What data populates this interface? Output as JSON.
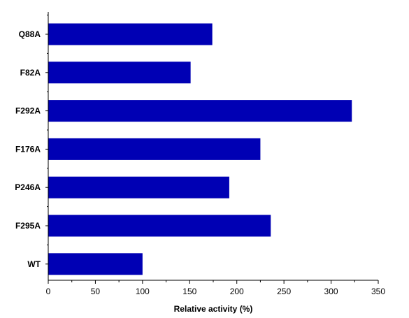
{
  "chart_data": {
    "type": "bar",
    "orientation": "horizontal",
    "categories": [
      "Q88A",
      "F82A",
      "F292A",
      "F176A",
      "P246A",
      "F295A",
      "WT"
    ],
    "values": [
      174,
      151,
      322,
      225,
      192,
      236,
      100
    ],
    "title": "",
    "xlabel": "Relative activity (%)",
    "ylabel": "",
    "xlim": [
      0,
      350
    ],
    "xticks": [
      "0",
      "50",
      "100",
      "150",
      "200",
      "250",
      "300",
      "350"
    ],
    "grid": false,
    "legend": "none",
    "bar_color": "#0000b4"
  }
}
